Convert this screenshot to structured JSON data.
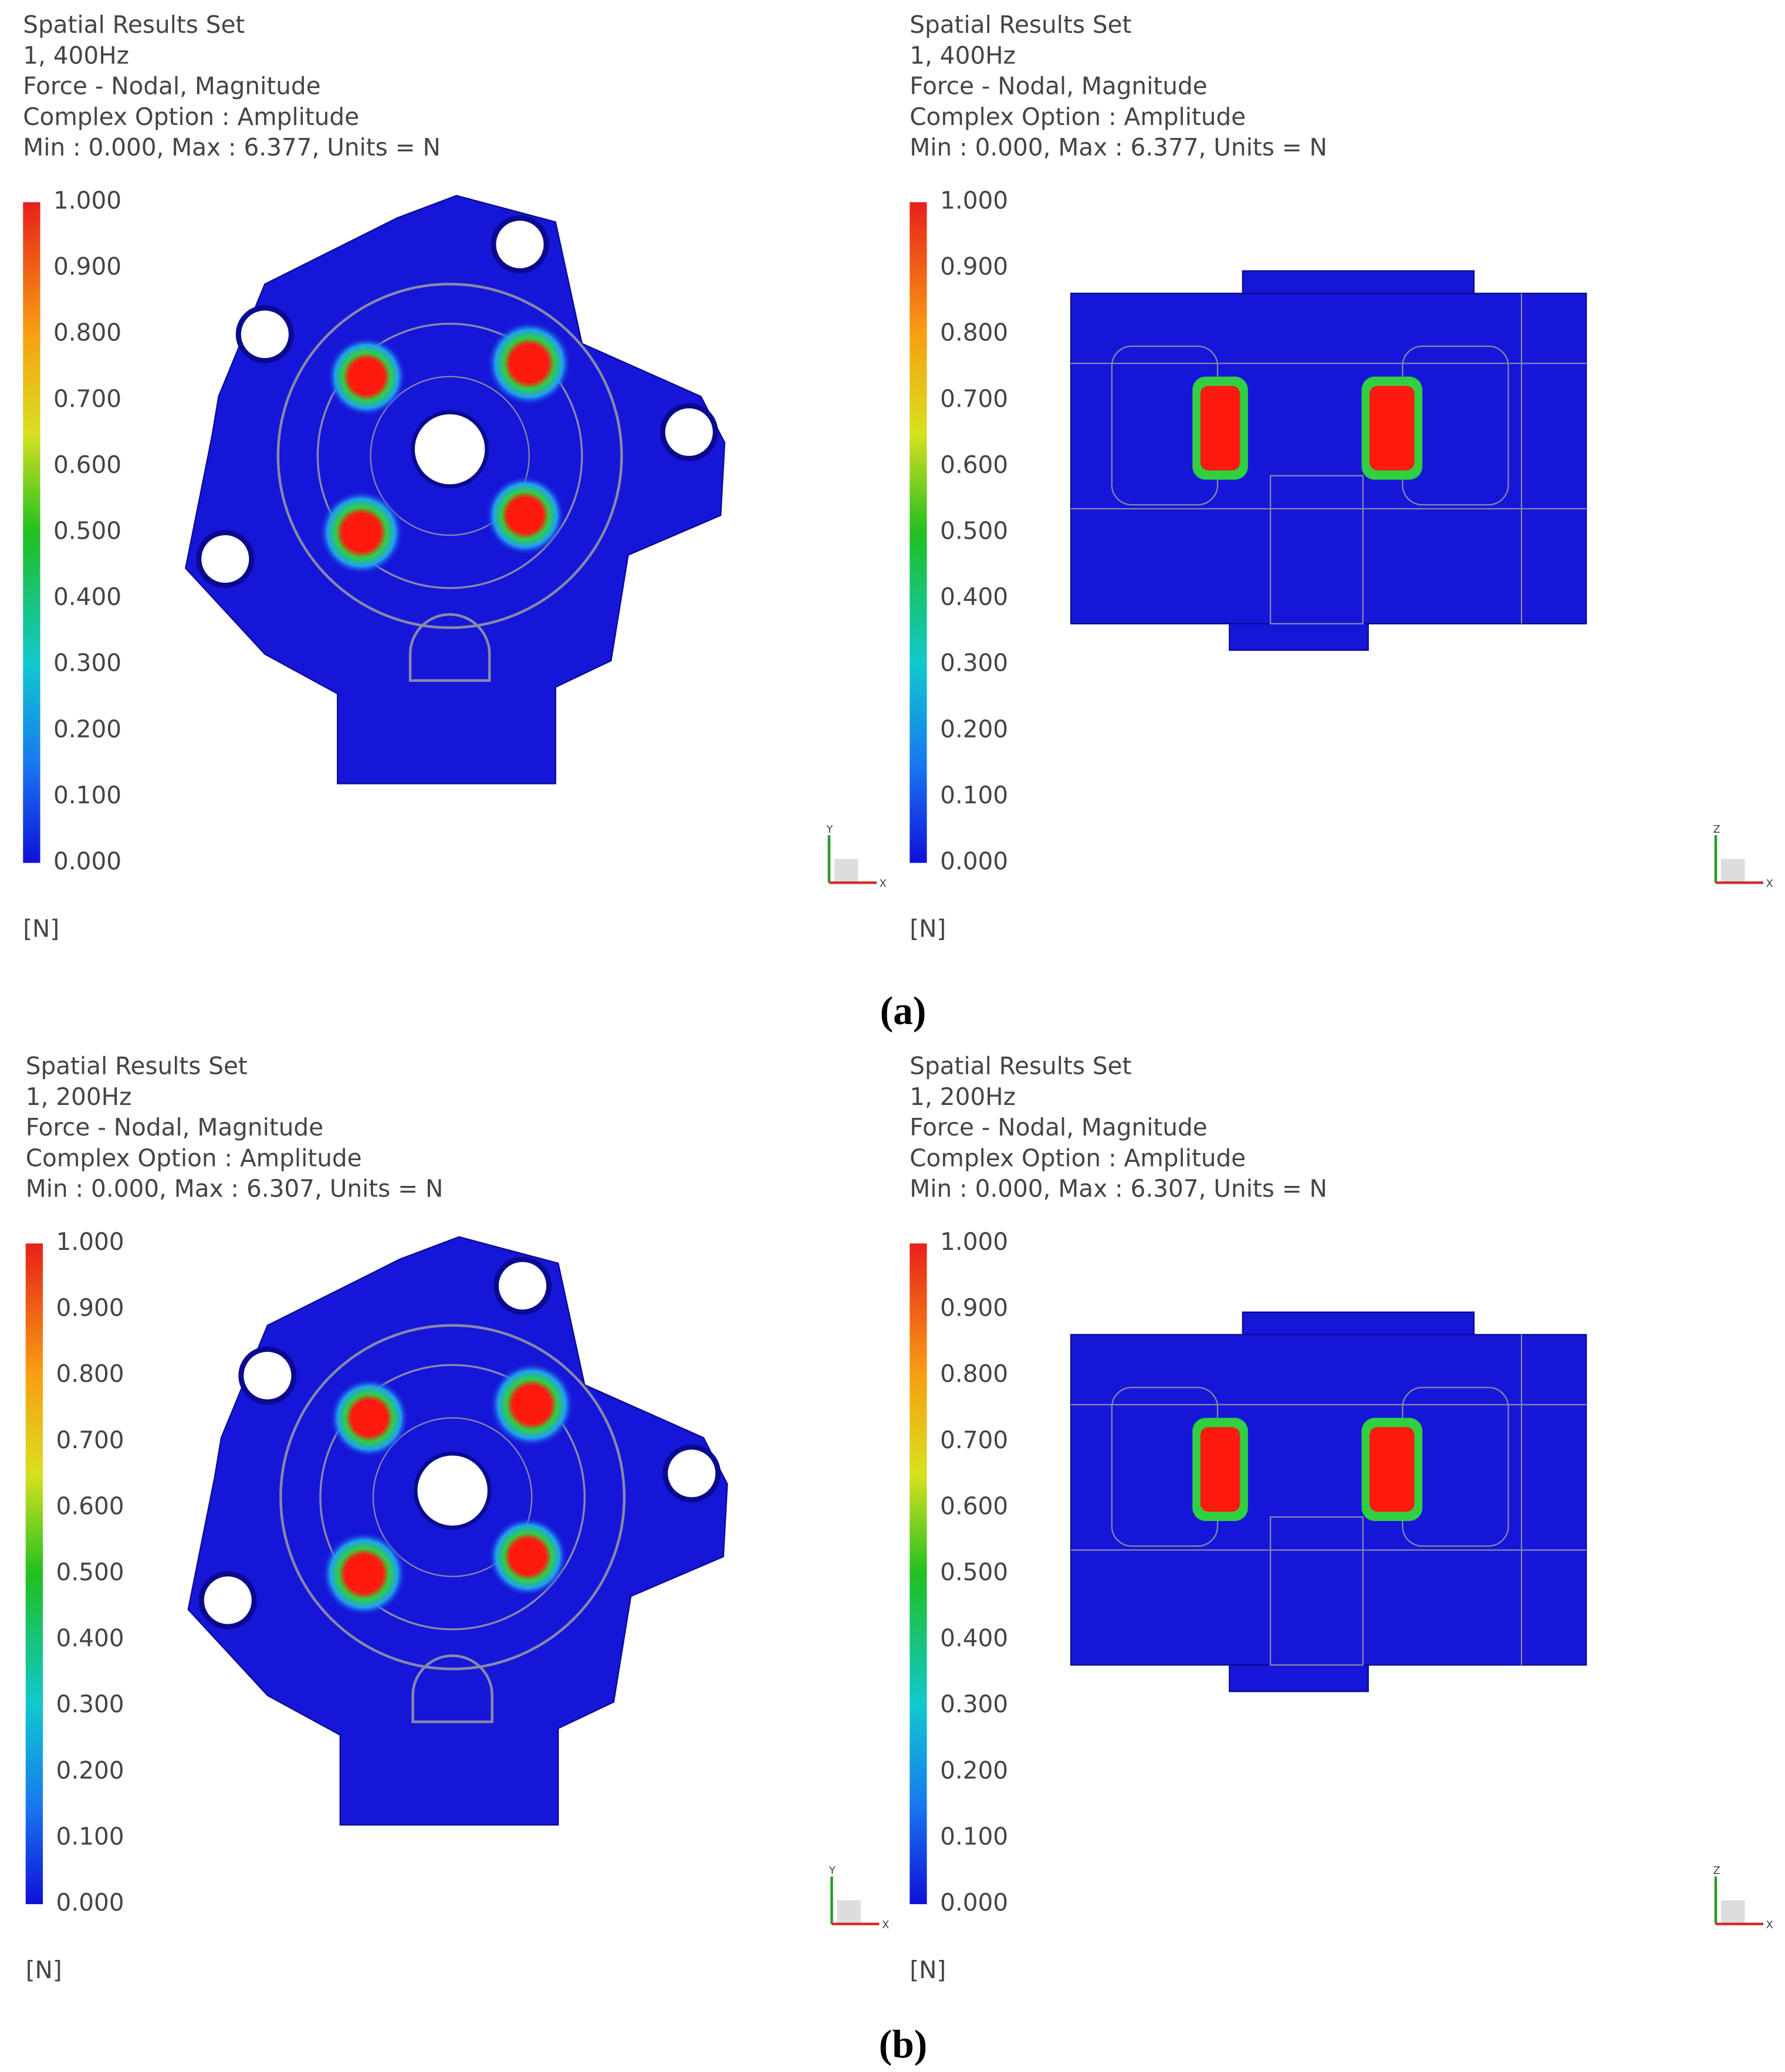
{
  "panels": [
    {
      "header": [
        "Spatial Results Set",
        "1,   400Hz",
        "Force - Nodal, Magnitude",
        "Complex Option : Amplitude",
        "Min : 0.000, Max : 6.377, Units = N"
      ],
      "legend": [
        "1.000",
        "0.900",
        "0.800",
        "0.700",
        "0.600",
        "0.500",
        "0.400",
        "0.300",
        "0.200",
        "0.100",
        "0.000"
      ],
      "unit": "[N]",
      "triad": [
        "Y",
        "X"
      ]
    },
    {
      "header": [
        "Spatial Results Set",
        "1,   400Hz",
        "Force - Nodal, Magnitude",
        "Complex Option : Amplitude",
        "Min : 0.000, Max : 6.377, Units = N"
      ],
      "legend": [
        "1.000",
        "0.900",
        "0.800",
        "0.700",
        "0.600",
        "0.500",
        "0.400",
        "0.300",
        "0.200",
        "0.100",
        "0.000"
      ],
      "unit": "[N]",
      "triad": [
        "Z",
        "X"
      ]
    },
    {
      "header": [
        "Spatial Results Set",
        "1,   200Hz",
        "Force - Nodal, Magnitude",
        "Complex Option : Amplitude",
        "Min : 0.000, Max : 6.307, Units = N"
      ],
      "legend": [
        "1.000",
        "0.900",
        "0.800",
        "0.700",
        "0.600",
        "0.500",
        "0.400",
        "0.300",
        "0.200",
        "0.100",
        "0.000"
      ],
      "unit": "[N]",
      "triad": [
        "Y",
        "X"
      ]
    },
    {
      "header": [
        "Spatial Results Set",
        "1,   200Hz",
        "Force - Nodal, Magnitude",
        "Complex Option : Amplitude",
        "Min : 0.000, Max : 6.307, Units = N"
      ],
      "legend": [
        "1.000",
        "0.900",
        "0.800",
        "0.700",
        "0.600",
        "0.500",
        "0.400",
        "0.300",
        "0.200",
        "0.100",
        "0.000"
      ],
      "unit": "[N]",
      "triad": [
        "Z",
        "X"
      ]
    }
  ],
  "captions": [
    "(a)",
    "(b)"
  ]
}
